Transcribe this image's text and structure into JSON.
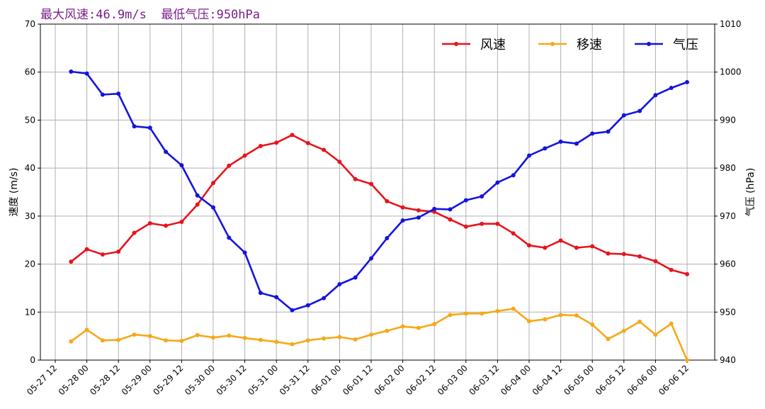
{
  "headline": "最大风速:46.9m/s  最低气压:950hPa",
  "colors": {
    "wind": "#e8141c",
    "move": "#f5a91a",
    "pressure": "#1414e0",
    "headline": "#7a1f8a"
  },
  "chart_data": {
    "type": "line",
    "title": "",
    "ylabel_left": "速度 (m/s)",
    "ylabel_right": "气压 (hPa)",
    "ylim_left": [
      0,
      70
    ],
    "ylim_right": [
      940,
      1010
    ],
    "yticks_left": [
      "0",
      "10",
      "20",
      "30",
      "40",
      "50",
      "60",
      "70"
    ],
    "yticks_right": [
      "940",
      "950",
      "960",
      "970",
      "980",
      "990",
      "1000",
      "1010"
    ],
    "x_tick_labels": [
      "05-27 12",
      "05-28 00",
      "05-28 12",
      "05-29 00",
      "05-29 12",
      "05-30 00",
      "05-30 12",
      "05-31 00",
      "05-31 12",
      "06-01 00",
      "06-01 12",
      "06-02 00",
      "06-02 12",
      "06-03 00",
      "06-03 12",
      "06-04 00",
      "06-04 12",
      "06-05 00",
      "06-05 12",
      "06-06 00",
      "06-06 12"
    ],
    "grid": true,
    "legend_position": "top-right",
    "series": [
      {
        "name": "风速",
        "axis": "left",
        "color": "#e8141c",
        "x": [
          0.5,
          1,
          1.5,
          2,
          2.5,
          3,
          3.5,
          4,
          4.5,
          5,
          5.5,
          6,
          6.5,
          7,
          7.5,
          8,
          8.5,
          9,
          9.5,
          10,
          10.5,
          11,
          11.5,
          12,
          12.5,
          13,
          13.5,
          14,
          14.5,
          15,
          15.5,
          16,
          16.5,
          17,
          17.5,
          18,
          18.5,
          19,
          19.5,
          20
        ],
        "values": [
          20.5,
          23.1,
          22.0,
          22.6,
          26.5,
          28.5,
          28.0,
          28.8,
          32.4,
          36.9,
          40.5,
          42.6,
          44.6,
          45.3,
          46.9,
          45.2,
          43.8,
          41.3,
          37.7,
          36.7,
          33.1,
          31.8,
          31.2,
          30.9,
          29.3,
          27.8,
          28.4,
          28.4,
          26.4,
          23.9,
          23.4,
          24.9,
          23.4,
          23.7,
          22.2,
          22.1,
          21.6,
          20.6,
          18.8,
          17.9
        ]
      },
      {
        "name": "移速",
        "axis": "left",
        "color": "#f5a91a",
        "x": [
          0.5,
          1,
          1.5,
          2,
          2.5,
          3,
          3.5,
          4,
          4.5,
          5,
          5.5,
          6,
          6.5,
          7,
          7.5,
          8,
          8.5,
          9,
          9.5,
          10,
          10.5,
          11,
          11.5,
          12,
          12.5,
          13,
          13.5,
          14,
          14.5,
          15,
          15.5,
          16,
          16.5,
          17,
          17.5,
          18,
          18.5,
          19,
          19.5,
          20
        ],
        "values": [
          3.9,
          6.3,
          4.1,
          4.2,
          5.3,
          5.0,
          4.1,
          4.0,
          5.2,
          4.7,
          5.1,
          4.6,
          4.2,
          3.8,
          3.3,
          4.1,
          4.5,
          4.8,
          4.3,
          5.3,
          6.1,
          7.0,
          6.7,
          7.5,
          9.4,
          9.7,
          9.7,
          10.2,
          10.7,
          8.1,
          8.5,
          9.4,
          9.3,
          7.4,
          4.4,
          6.1,
          8.0,
          5.3,
          7.6,
          0
        ]
      },
      {
        "name": "气压",
        "axis": "right",
        "color": "#1414e0",
        "x": [
          0.5,
          1,
          1.5,
          2,
          2.5,
          3,
          3.5,
          4,
          4.5,
          5,
          5.5,
          6,
          6.5,
          7,
          7.5,
          8,
          8.5,
          9,
          9.5,
          10,
          10.5,
          11,
          11.5,
          12,
          12.5,
          13,
          13.5,
          14,
          14.5,
          15,
          15.5,
          16,
          16.5,
          17,
          17.5,
          18,
          18.5,
          19,
          19.5,
          20
        ],
        "values": [
          1000.1,
          999.7,
          995.3,
          995.5,
          988.7,
          988.4,
          983.4,
          980.6,
          974.3,
          971.8,
          965.5,
          962.4,
          954.0,
          953.1,
          950.4,
          951.4,
          952.9,
          955.8,
          957.2,
          961.2,
          965.4,
          969.1,
          969.7,
          971.5,
          971.4,
          973.3,
          974.1,
          977.0,
          978.5,
          982.6,
          984.1,
          985.5,
          985.1,
          987.2,
          987.6,
          991.0,
          991.9,
          995.2,
          996.7,
          997.9
        ]
      }
    ]
  }
}
